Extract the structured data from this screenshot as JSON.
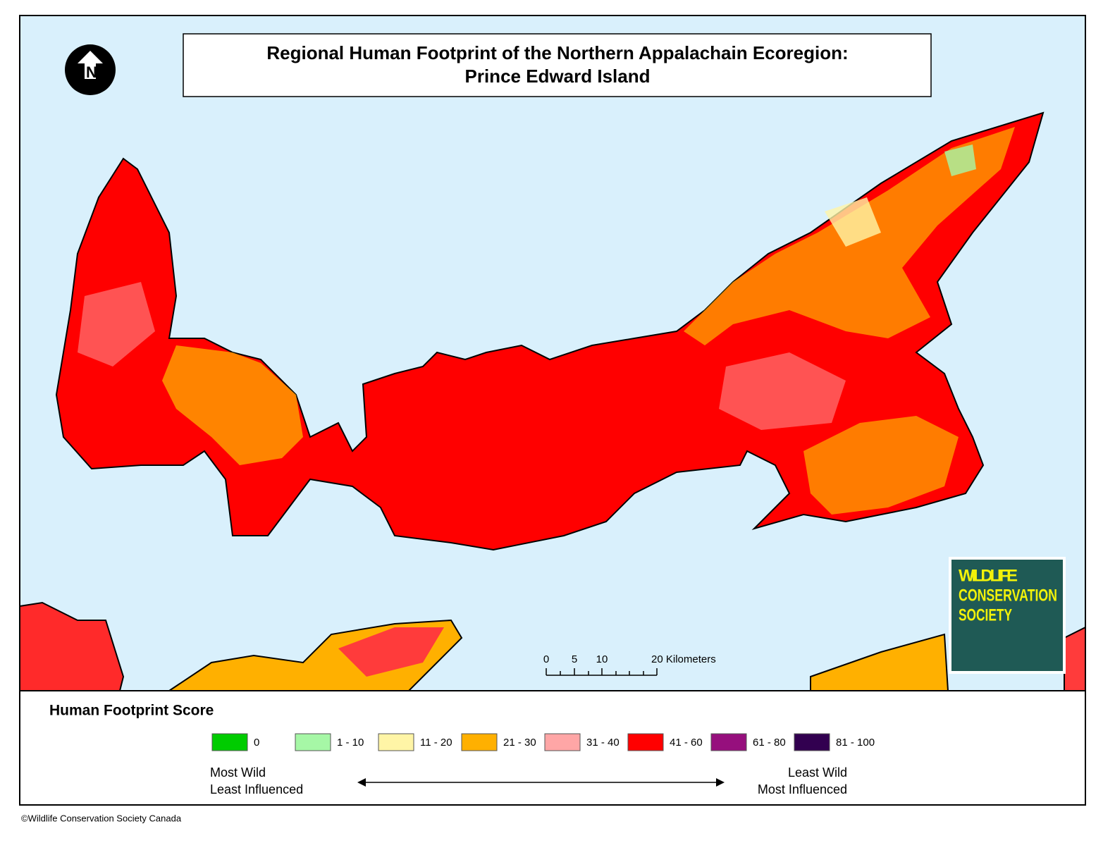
{
  "title": [
    "Regional Human Footprint of the Northern Appalachain Ecoregion:",
    "Prince Edward Island"
  ],
  "north_arrow": "N",
  "scale_bar": {
    "labels": [
      "0",
      "5",
      "10",
      "20 Kilometers"
    ]
  },
  "logo": [
    "WILDLIFE",
    "CONSERVATION",
    "SOCIETY"
  ],
  "legend": {
    "title": "Human Footprint Score",
    "items": [
      {
        "label": "0",
        "color": "#00cc00"
      },
      {
        "label": "1 - 10",
        "color": "#a6f7a6"
      },
      {
        "label": "11 - 20",
        "color": "#fff5a6"
      },
      {
        "label": "21 - 30",
        "color": "#ffb000"
      },
      {
        "label": "31 - 40",
        "color": "#ffa6a6"
      },
      {
        "label": "41 - 60",
        "color": "#ff0000"
      },
      {
        "label": "61 - 80",
        "color": "#960f7d"
      },
      {
        "label": "81 - 100",
        "color": "#320050"
      }
    ],
    "left": [
      "Most Wild",
      "Least Influenced"
    ],
    "right": [
      "Least Wild",
      "Most Influenced"
    ]
  },
  "copyright": "©Wildlife Conservation Society Canada"
}
